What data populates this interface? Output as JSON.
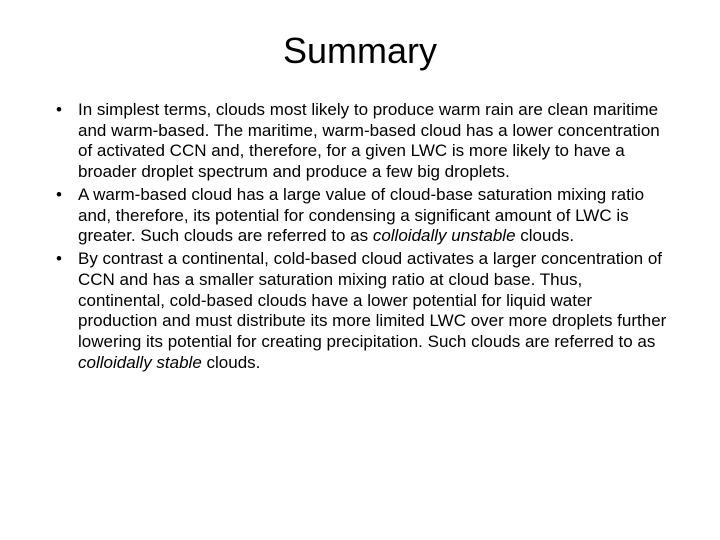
{
  "slide": {
    "title": "Summary",
    "bullets": [
      {
        "prefix": "In simplest terms, clouds most likely to produce warm rain are clean maritime and warm-based. The maritime, warm-based cloud has a lower concentration of activated CCN and, therefore, for a given LWC is more likely to have a broader droplet spectrum and produce a few big droplets.",
        "italic": "",
        "suffix": ""
      },
      {
        "prefix": "A warm-based cloud has a large value of cloud-base saturation mixing ratio and, therefore, its potential for condensing a significant amount of LWC is greater. Such clouds are referred to as ",
        "italic": "colloidally unstable",
        "suffix": " clouds."
      },
      {
        "prefix": "By contrast a continental, cold-based cloud activates a larger concentration of CCN and has a smaller saturation mixing ratio at cloud base. Thus, continental, cold-based clouds have a lower potential for liquid water production and must distribute its more limited LWC over more droplets further lowering its potential for creating precipitation. Such clouds are referred to as ",
        "italic": "colloidally stable",
        "suffix": " clouds."
      }
    ]
  },
  "style": {
    "background_color": "#ffffff",
    "text_color": "#000000",
    "title_fontsize": 36,
    "body_fontsize": 17,
    "font_family": "Arial"
  }
}
